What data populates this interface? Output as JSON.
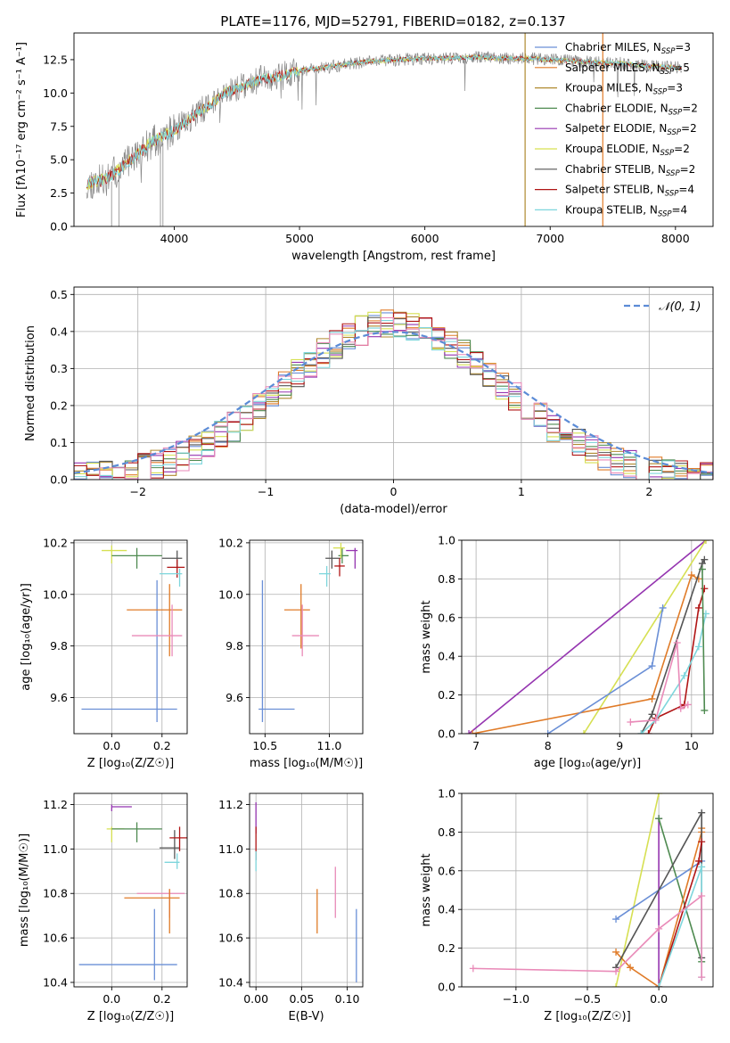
{
  "figure_title": "PLATE=1176, MJD=52791, FIBERID=0182, z=0.137",
  "colors": {
    "chabrier_miles": "#6a8fd6",
    "salpeter_miles": "#e07b28",
    "kroupa_miles": "#b08a30",
    "chabrier_elodie": "#4e8a50",
    "salpeter_elodie": "#9535b0",
    "kroupa_elodie": "#d6e052",
    "chabrier_stelib": "#555555",
    "salpeter_stelib": "#b01515",
    "kroupa_stelib": "#7ed6dc",
    "pink": "#e98ab8",
    "normal_fit": "#5b8bd6",
    "data": "#888888"
  },
  "chart_data": [
    {
      "id": "spectrum",
      "type": "line",
      "xlabel": "wavelength [Angstrom, rest frame]",
      "ylabel": "Flux [fλ10⁻¹⁷ erg cm⁻² s⁻¹ A⁻¹]",
      "xlim": [
        3200,
        8300
      ],
      "ylim": [
        0,
        14.5
      ],
      "xticks": [
        4000,
        5000,
        6000,
        7000,
        8000
      ],
      "yticks": [
        0.0,
        2.5,
        5.0,
        7.5,
        10.0,
        12.5
      ],
      "xtick_labels": [
        "4000",
        "5000",
        "6000",
        "7000",
        "8000"
      ],
      "ytick_labels": [
        "0.0",
        "2.5",
        "5.0",
        "7.5",
        "10.0",
        "12.5"
      ],
      "legend_position": "right",
      "legend": [
        {
          "label": "Chabrier MILES, N",
          "sub": "SSP",
          "tail": "=3",
          "color_key": "chabrier_miles"
        },
        {
          "label": "Salpeter MILES, N",
          "sub": "SSP",
          "tail": "=5",
          "color_key": "salpeter_miles"
        },
        {
          "label": "Kroupa MILES, N",
          "sub": "SSP",
          "tail": "=3",
          "color_key": "kroupa_miles"
        },
        {
          "label": "Chabrier ELODIE, N",
          "sub": "SSP",
          "tail": "=2",
          "color_key": "chabrier_elodie"
        },
        {
          "label": "Salpeter ELODIE, N",
          "sub": "SSP",
          "tail": "=2",
          "color_key": "salpeter_elodie"
        },
        {
          "label": "Kroupa ELODIE, N",
          "sub": "SSP",
          "tail": "=2",
          "color_key": "kroupa_elodie"
        },
        {
          "label": "Chabrier STELIB, N",
          "sub": "SSP",
          "tail": "=2",
          "color_key": "chabrier_stelib"
        },
        {
          "label": "Salpeter STELIB, N",
          "sub": "SSP",
          "tail": "=4",
          "color_key": "salpeter_stelib"
        },
        {
          "label": "Kroupa STELIB, N",
          "sub": "SSP",
          "tail": "=4",
          "color_key": "kroupa_stelib"
        }
      ],
      "continuum": {
        "x": [
          3300,
          3450,
          3600,
          3700,
          3800,
          3900,
          4000,
          4100,
          4200,
          4300,
          4400,
          4500,
          4600,
          4700,
          4800,
          4900,
          5000,
          5200,
          5400,
          5600,
          5800,
          6000,
          6200,
          6400,
          6600,
          6800,
          7000,
          7200,
          7400,
          7600,
          7800,
          8050
        ],
        "y": [
          3.2,
          3.5,
          4.6,
          5.3,
          6.2,
          6.7,
          7.2,
          7.9,
          8.6,
          9.2,
          10.0,
          10.3,
          10.7,
          11.1,
          11.2,
          11.4,
          11.7,
          11.9,
          12.2,
          12.4,
          12.5,
          12.6,
          12.6,
          12.7,
          12.6,
          12.6,
          12.5,
          12.4,
          12.3,
          12.2,
          12.0,
          11.9
        ]
      },
      "spikes": [
        {
          "x": 6800,
          "color_key": "kroupa_miles"
        },
        {
          "x": 7420,
          "color_key": "salpeter_miles"
        }
      ]
    },
    {
      "id": "residuals",
      "type": "step",
      "xlabel": "(data-model)/error",
      "ylabel": "Normed distribution",
      "xlim": [
        -2.5,
        2.5
      ],
      "ylim": [
        0,
        0.52
      ],
      "xticks": [
        -2,
        -1,
        0,
        1,
        2
      ],
      "yticks": [
        0.0,
        0.1,
        0.2,
        0.3,
        0.4,
        0.5
      ],
      "xtick_labels": [
        "−2",
        "−1",
        "0",
        "1",
        "2"
      ],
      "ytick_labels": [
        "0.0",
        "0.1",
        "0.2",
        "0.3",
        "0.4",
        "0.5"
      ],
      "legend_position": "top-right",
      "normal_label": "𝒩(0, 1)",
      "bin_width": 0.1
    },
    {
      "id": "age_vs_Z",
      "type": "errorbar",
      "xlabel": "Z [log₁₀(Z/Z☉)]",
      "ylabel": "age  [log₁₀(age/yr)]",
      "xlim": [
        -0.15,
        0.3
      ],
      "ylim": [
        9.46,
        10.21
      ],
      "xticks": [
        0.0,
        0.2
      ],
      "yticks": [
        9.6,
        9.8,
        10.0,
        10.2
      ],
      "xtick_labels": [
        "0.0",
        "0.2"
      ],
      "ytick_labels": [
        "9.6",
        "9.8",
        "10.0",
        "10.2"
      ],
      "points": [
        {
          "x": 0.18,
          "xerr": [
            0.3,
            0.08
          ],
          "y": 9.555,
          "yerr": [
            0.05,
            0.5
          ],
          "color_key": "chabrier_miles"
        },
        {
          "x": 0.23,
          "xerr": [
            0.17,
            0.05
          ],
          "y": 9.94,
          "yerr": [
            0.18,
            0.1
          ],
          "color_key": "salpeter_miles"
        },
        {
          "x": 0.24,
          "xerr": [
            0.16,
            0.04
          ],
          "y": 9.84,
          "yerr": [
            0.08,
            0.12
          ],
          "color_key": "pink"
        },
        {
          "x": 0.0,
          "xerr": [
            0.04,
            0.06
          ],
          "y": 10.17,
          "yerr": [
            0.05,
            0.02
          ],
          "color_key": "kroupa_elodie"
        },
        {
          "x": 0.1,
          "xerr": [
            0.1,
            0.1
          ],
          "y": 10.15,
          "yerr": [
            0.05,
            0.03
          ],
          "color_key": "chabrier_elodie"
        },
        {
          "x": 0.26,
          "xerr": [
            0.06,
            0.02
          ],
          "y": 10.14,
          "yerr": [
            0.04,
            0.03
          ],
          "color_key": "chabrier_stelib"
        },
        {
          "x": 0.26,
          "xerr": [
            0.04,
            0.03
          ],
          "y": 10.105,
          "yerr": [
            0.04,
            0.03
          ],
          "color_key": "salpeter_stelib"
        },
        {
          "x": 0.27,
          "xerr": [
            0.08,
            0.01
          ],
          "y": 10.08,
          "yerr": [
            0.05,
            0.02
          ],
          "color_key": "kroupa_stelib"
        }
      ]
    },
    {
      "id": "age_vs_mass",
      "type": "errorbar",
      "xlabel": "mass [log₁₀(M/M☉)]",
      "ylabel": "",
      "xlim": [
        10.38,
        11.26
      ],
      "ylim": [
        9.46,
        10.21
      ],
      "xticks": [
        10.5,
        11.0
      ],
      "yticks": [
        9.6,
        9.8,
        10.0,
        10.2
      ],
      "xtick_labels": [
        "10.5",
        "11.0"
      ],
      "ytick_labels": [
        "9.6",
        "9.8",
        "10.0",
        "10.2"
      ],
      "points": [
        {
          "x": 10.48,
          "xerr": [
            0.03,
            0.25
          ],
          "y": 9.555,
          "yerr": [
            0.05,
            0.5
          ],
          "color_key": "chabrier_miles"
        },
        {
          "x": 10.78,
          "xerr": [
            0.13,
            0.07
          ],
          "y": 9.94,
          "yerr": [
            0.15,
            0.1
          ],
          "color_key": "salpeter_miles"
        },
        {
          "x": 10.79,
          "xerr": [
            0.08,
            0.13
          ],
          "y": 9.84,
          "yerr": [
            0.08,
            0.12
          ],
          "color_key": "pink"
        },
        {
          "x": 11.02,
          "xerr": [
            0.05,
            0.07
          ],
          "y": 10.14,
          "yerr": [
            0.04,
            0.03
          ],
          "color_key": "chabrier_stelib"
        },
        {
          "x": 11.08,
          "xerr": [
            0.04,
            0.04
          ],
          "y": 10.11,
          "yerr": [
            0.04,
            0.03
          ],
          "color_key": "salpeter_stelib"
        },
        {
          "x": 11.1,
          "xerr": [
            0.03,
            0.05
          ],
          "y": 10.15,
          "yerr": [
            0.03,
            0.03
          ],
          "color_key": "chabrier_elodie"
        },
        {
          "x": 11.2,
          "xerr": [
            0.07,
            0.02
          ],
          "y": 10.17,
          "yerr": [
            0.07,
            0.01
          ],
          "color_key": "salpeter_elodie"
        },
        {
          "x": 11.09,
          "xerr": [
            0.06,
            0.03
          ],
          "y": 10.18,
          "yerr": [
            0.04,
            0.02
          ],
          "color_key": "kroupa_elodie"
        },
        {
          "x": 10.98,
          "xerr": [
            0.06,
            0.03
          ],
          "y": 10.08,
          "yerr": [
            0.05,
            0.03
          ],
          "color_key": "kroupa_stelib"
        }
      ]
    },
    {
      "id": "mass_weight_vs_age",
      "type": "line",
      "xlabel": "age  [log₁₀(age/yr)]",
      "ylabel": "mass weight",
      "xlim": [
        6.8,
        10.3
      ],
      "ylim": [
        0,
        1.0
      ],
      "xticks": [
        7,
        8,
        9,
        10
      ],
      "yticks": [
        0.0,
        0.2,
        0.4,
        0.6,
        0.8,
        1.0
      ],
      "xtick_labels": [
        "7",
        "8",
        "9",
        "10"
      ],
      "ytick_labels": [
        "0.0",
        "0.2",
        "0.4",
        "0.6",
        "0.8",
        "1.0"
      ],
      "series": [
        {
          "color_key": "salpeter_elodie",
          "x": [
            6.9,
            10.2
          ],
          "y": [
            0.0,
            1.0
          ]
        },
        {
          "color_key": "kroupa_elodie",
          "x": [
            8.5,
            10.2
          ],
          "y": [
            0.0,
            1.0
          ]
        },
        {
          "color_key": "salpeter_miles",
          "x": [
            6.95,
            9.45,
            10.0,
            10.1
          ],
          "y": [
            0.0,
            0.18,
            0.82,
            0.8
          ]
        },
        {
          "color_key": "chabrier_miles",
          "x": [
            8.0,
            9.45,
            9.6
          ],
          "y": [
            0.0,
            0.35,
            0.65
          ]
        },
        {
          "color_key": "chabrier_stelib",
          "x": [
            9.3,
            9.45,
            10.15,
            10.18
          ],
          "y": [
            0.0,
            0.1,
            0.88,
            0.9
          ]
        },
        {
          "color_key": "salpeter_stelib",
          "x": [
            9.4,
            9.5,
            9.9,
            10.1,
            10.18
          ],
          "y": [
            0.0,
            0.08,
            0.15,
            0.65,
            0.75
          ]
        },
        {
          "color_key": "kroupa_stelib",
          "x": [
            9.3,
            9.5,
            9.9,
            10.1,
            10.2
          ],
          "y": [
            0.0,
            0.07,
            0.3,
            0.45,
            0.62
          ]
        },
        {
          "color_key": "pink",
          "x": [
            9.15,
            9.5,
            9.8,
            9.85,
            9.95
          ],
          "y": [
            0.06,
            0.07,
            0.47,
            0.13,
            0.15
          ]
        },
        {
          "color_key": "chabrier_elodie",
          "x": [
            10.15,
            10.18
          ],
          "y": [
            0.85,
            0.12
          ]
        }
      ]
    },
    {
      "id": "mass_vs_Z",
      "type": "errorbar",
      "xlabel": "Z [log₁₀(Z/Z☉)]",
      "ylabel": "mass [log₁₀(M/M☉)]",
      "xlim": [
        -0.15,
        0.3
      ],
      "ylim": [
        10.38,
        11.25
      ],
      "xticks": [
        0.0,
        0.2
      ],
      "yticks": [
        10.4,
        10.6,
        10.8,
        11.0,
        11.2
      ],
      "xtick_labels": [
        "0.0",
        "0.2"
      ],
      "ytick_labels": [
        "10.4",
        "10.6",
        "10.8",
        "11.0",
        "11.2"
      ],
      "points": [
        {
          "x": 0.0,
          "xerr": [
            0.0,
            0.08
          ],
          "y": 11.19,
          "yerr": [
            0.02,
            0.01
          ],
          "color_key": "salpeter_elodie"
        },
        {
          "x": 0.0,
          "xerr": [
            0.02,
            0.05
          ],
          "y": 11.09,
          "yerr": [
            0.06,
            0.01
          ],
          "color_key": "kroupa_elodie"
        },
        {
          "x": 0.1,
          "xerr": [
            0.1,
            0.1
          ],
          "y": 11.09,
          "yerr": [
            0.06,
            0.03
          ],
          "color_key": "chabrier_elodie"
        },
        {
          "x": 0.25,
          "xerr": [
            0.06,
            0.02
          ],
          "y": 11.005,
          "yerr": [
            0.05,
            0.08
          ],
          "color_key": "chabrier_stelib"
        },
        {
          "x": 0.27,
          "xerr": [
            0.04,
            0.04
          ],
          "y": 11.05,
          "yerr": [
            0.06,
            0.05
          ],
          "color_key": "salpeter_stelib"
        },
        {
          "x": 0.26,
          "xerr": [
            0.05,
            0.01
          ],
          "y": 10.94,
          "yerr": [
            0.03,
            0.04
          ],
          "color_key": "kroupa_stelib"
        },
        {
          "x": 0.23,
          "xerr": [
            0.13,
            0.06
          ],
          "y": 10.8,
          "yerr": [
            0.11,
            0.02
          ],
          "color_key": "pink"
        },
        {
          "x": 0.23,
          "xerr": [
            0.18,
            0.04
          ],
          "y": 10.78,
          "yerr": [
            0.16,
            0.04
          ],
          "color_key": "salpeter_miles"
        },
        {
          "x": 0.17,
          "xerr": [
            0.3,
            0.09
          ],
          "y": 10.48,
          "yerr": [
            0.07,
            0.25
          ],
          "color_key": "chabrier_miles"
        }
      ]
    },
    {
      "id": "mass_vs_ebv",
      "type": "errorbar",
      "xlabel": "E(B-V)",
      "ylabel": "",
      "xlim": [
        -0.007,
        0.117
      ],
      "ylim": [
        10.38,
        11.25
      ],
      "xticks": [
        0.0,
        0.05,
        0.1
      ],
      "yticks": [
        10.4,
        10.6,
        10.8,
        11.0,
        11.2
      ],
      "xtick_labels": [
        "0.00",
        "0.05",
        "0.10"
      ],
      "ytick_labels": [
        "10.4",
        "10.6",
        "10.8",
        "11.0",
        "11.2"
      ],
      "points": [
        {
          "x": 0.0,
          "xerr": [
            0,
            0
          ],
          "y": 11.12,
          "yerr": [
            0.05,
            0.09
          ],
          "color_key": "salpeter_elodie"
        },
        {
          "x": 0.0,
          "xerr": [
            0,
            0
          ],
          "y": 11.02,
          "yerr": [
            0.07,
            0.08
          ],
          "color_key": "salpeter_stelib"
        },
        {
          "x": 0.0,
          "xerr": [
            0,
            0
          ],
          "y": 10.94,
          "yerr": [
            0.04,
            0.05
          ],
          "color_key": "kroupa_stelib"
        },
        {
          "x": 0.067,
          "xerr": [
            0,
            0
          ],
          "y": 10.72,
          "yerr": [
            0.1,
            0.1
          ],
          "color_key": "salpeter_miles"
        },
        {
          "x": 0.087,
          "xerr": [
            0,
            0
          ],
          "y": 10.8,
          "yerr": [
            0.11,
            0.12
          ],
          "color_key": "pink"
        },
        {
          "x": 0.11,
          "xerr": [
            0,
            0
          ],
          "y": 10.57,
          "yerr": [
            0.17,
            0.16
          ],
          "color_key": "chabrier_miles"
        }
      ]
    },
    {
      "id": "mass_weight_vs_Z",
      "type": "line",
      "xlabel": "Z [log₁₀(Z/Z☉)]",
      "ylabel": "mass weight",
      "xlim": [
        -1.38,
        0.38
      ],
      "ylim": [
        0,
        1.0
      ],
      "xticks": [
        -1.0,
        -0.5,
        0.0
      ],
      "yticks": [
        0.0,
        0.2,
        0.4,
        0.6,
        0.8,
        1.0
      ],
      "xtick_labels": [
        "−1.0",
        "−0.5",
        "0.0"
      ],
      "ytick_labels": [
        "0.0",
        "0.2",
        "0.4",
        "0.6",
        "0.8",
        "1.0"
      ],
      "series": [
        {
          "color_key": "kroupa_elodie",
          "x": [
            -0.3,
            0.0
          ],
          "y": [
            0.0,
            1.0
          ]
        },
        {
          "color_key": "salpeter_elodie",
          "x": [
            0.0,
            0.0
          ],
          "y": [
            0.0,
            0.87
          ]
        },
        {
          "color_key": "chabrier_elodie",
          "x": [
            0.0,
            0.3
          ],
          "y": [
            0.87,
            0.13
          ]
        },
        {
          "color_key": "chabrier_miles",
          "x": [
            -0.3,
            0.3
          ],
          "y": [
            0.35,
            0.65
          ]
        },
        {
          "color_key": "salpeter_miles",
          "x": [
            -0.3,
            -0.2,
            0.0,
            0.3,
            0.3
          ],
          "y": [
            0.18,
            0.1,
            0.0,
            0.8,
            0.82
          ]
        },
        {
          "color_key": "chabrier_stelib",
          "x": [
            -0.3,
            0.3,
            0.3
          ],
          "y": [
            0.1,
            0.9,
            0.15
          ]
        },
        {
          "color_key": "salpeter_stelib",
          "x": [
            0.0,
            0.28,
            0.3
          ],
          "y": [
            0.0,
            0.65,
            0.75
          ]
        },
        {
          "color_key": "kroupa_stelib",
          "x": [
            0.0,
            0.3,
            0.3
          ],
          "y": [
            0.0,
            0.62,
            0.05
          ]
        },
        {
          "color_key": "pink",
          "x": [
            -1.3,
            -0.3,
            0.0,
            0.3,
            0.3
          ],
          "y": [
            0.095,
            0.08,
            0.3,
            0.47,
            0.05
          ]
        }
      ]
    }
  ]
}
